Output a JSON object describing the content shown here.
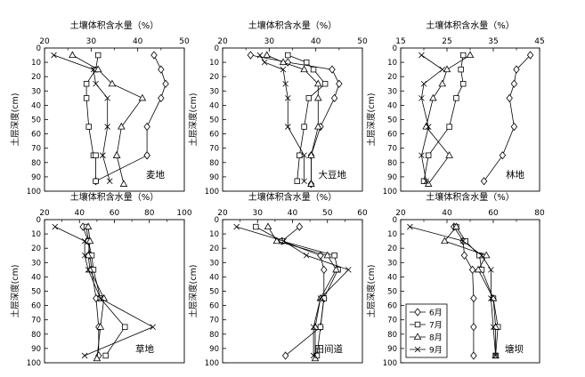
{
  "chart_data": [
    {
      "type": "line",
      "name": "麦地",
      "title": "土壤体积含水量（%）",
      "ylabel": "土层深度(cm)",
      "xlim": [
        20,
        50
      ],
      "ylim": [
        0,
        100
      ],
      "xticks": [
        20,
        30,
        40,
        50
      ],
      "yticks": [
        0,
        10,
        20,
        30,
        40,
        50,
        60,
        70,
        80,
        90,
        100
      ],
      "series": [
        {
          "name": "6月",
          "marker": "diamond",
          "x": [
            43.5,
            45.0,
            46.0,
            45.0,
            42.0,
            42.0,
            42.0,
            31.0
          ],
          "y": [
            5,
            15,
            25,
            35,
            55,
            75,
            75,
            93
          ]
        },
        {
          "name": "7月",
          "marker": "square",
          "x": [
            31.5,
            31.0,
            29.0,
            29.0,
            29.5,
            30.5,
            31.0,
            31.0
          ],
          "y": [
            5,
            15,
            25,
            35,
            55,
            75,
            75,
            93
          ]
        },
        {
          "name": "8月",
          "marker": "triangle",
          "x": [
            26.0,
            31.5,
            34.5,
            41.0,
            36.5,
            35.5,
            35.5,
            37.0
          ],
          "y": [
            5,
            15,
            25,
            35,
            55,
            75,
            75,
            95
          ]
        },
        {
          "name": "9月",
          "marker": "x",
          "x": [
            22.0,
            30.5,
            31.0,
            33.5,
            33.5,
            32.5,
            32.5,
            34.0
          ],
          "y": [
            5,
            15,
            25,
            35,
            55,
            75,
            75,
            93
          ]
        }
      ]
    },
    {
      "type": "line",
      "name": "大豆地",
      "title": "土壤体积含水量（%）",
      "ylabel": "土层深度(cm)",
      "xlim": [
        20,
        50
      ],
      "ylim": [
        0,
        100
      ],
      "xticks": [
        20,
        30,
        40,
        50
      ],
      "yticks": [
        0,
        10,
        20,
        30,
        40,
        50,
        60,
        70,
        80,
        90,
        100
      ],
      "series": [
        {
          "name": "6月",
          "marker": "diamond",
          "x": [
            26.0,
            34.0,
            43.5,
            45.0,
            44.0,
            41.0,
            39.0,
            39.0
          ],
          "y": [
            5,
            10,
            15,
            25,
            35,
            55,
            75,
            95
          ]
        },
        {
          "name": "7月",
          "marker": "square",
          "x": [
            34.0,
            38.0,
            39.5,
            42.0,
            38.5,
            37.5,
            36.5,
            36.0
          ],
          "y": [
            5,
            10,
            15,
            25,
            35,
            55,
            75,
            93
          ]
        },
        {
          "name": "8月",
          "marker": "triangle",
          "x": [
            29.5,
            33.0,
            37.5,
            40.5,
            40.5,
            40.5,
            39.0,
            39.0
          ],
          "y": [
            5,
            10,
            15,
            25,
            35,
            55,
            75,
            95
          ]
        },
        {
          "name": "9月",
          "marker": "x",
          "x": [
            28.0,
            29.0,
            33.0,
            33.5,
            34.0,
            34.0,
            37.5,
            37.5
          ],
          "y": [
            5,
            10,
            15,
            25,
            35,
            55,
            75,
            93
          ]
        }
      ]
    },
    {
      "type": "line",
      "name": "林地",
      "title": "土壤体积含水量（%）",
      "ylabel": "土层深度(cm)",
      "xlim": [
        15,
        45
      ],
      "ylim": [
        0,
        100
      ],
      "xticks": [
        15,
        25,
        35,
        45
      ],
      "yticks": [
        0,
        10,
        20,
        30,
        40,
        50,
        60,
        70,
        80,
        90,
        100
      ],
      "series": [
        {
          "name": "6月",
          "marker": "diamond",
          "x": [
            43.0,
            40.0,
            39.5,
            38.5,
            39.5,
            37.0,
            33.0
          ],
          "y": [
            5,
            15,
            25,
            35,
            55,
            75,
            93
          ]
        },
        {
          "name": "7月",
          "marker": "square",
          "x": [
            28.5,
            28.0,
            28.5,
            27.0,
            25.5,
            21.0,
            20.0
          ],
          "y": [
            5,
            15,
            25,
            35,
            55,
            75,
            93
          ]
        },
        {
          "name": "8月",
          "marker": "triangle",
          "x": [
            30.0,
            25.0,
            24.0,
            22.0,
            20.5,
            25.5,
            21.0
          ],
          "y": [
            5,
            15,
            25,
            35,
            55,
            75,
            95
          ]
        },
        {
          "name": "9月",
          "marker": "x",
          "x": [
            19.5,
            24.0,
            20.0,
            19.5,
            21.0,
            19.5,
            20.5
          ],
          "y": [
            5,
            15,
            25,
            35,
            55,
            75,
            93
          ]
        }
      ]
    },
    {
      "type": "line",
      "name": "草地",
      "title": "土壤体积含水量（%）",
      "ylabel": "土层深度(cm)",
      "xlim": [
        20,
        100
      ],
      "ylim": [
        0,
        100
      ],
      "xticks": [
        20,
        40,
        60,
        80,
        100
      ],
      "yticks": [
        0,
        10,
        20,
        30,
        40,
        50,
        60,
        70,
        80,
        90,
        100
      ],
      "series": [
        {
          "name": "6月",
          "marker": "diamond",
          "x": [
            42.0,
            45.0,
            46.0,
            47.0,
            49.5,
            51.0,
            51.0
          ],
          "y": [
            5,
            15,
            25,
            35,
            55,
            75,
            95
          ]
        },
        {
          "name": "7月",
          "marker": "square",
          "x": [
            44.0,
            45.0,
            47.0,
            48.0,
            52.0,
            66.0,
            55.0
          ],
          "y": [
            5,
            15,
            25,
            35,
            55,
            75,
            95
          ]
        },
        {
          "name": "8月",
          "marker": "triangle",
          "x": [
            45.0,
            46.0,
            45.0,
            46.0,
            54.0,
            52.0,
            50.0
          ],
          "y": [
            5,
            15,
            25,
            35,
            55,
            75,
            97
          ]
        },
        {
          "name": "9月",
          "marker": "x",
          "x": [
            26.0,
            43.0,
            43.0,
            45.0,
            52.0,
            82.0,
            43.0
          ],
          "y": [
            5,
            15,
            25,
            35,
            55,
            75,
            95
          ]
        }
      ]
    },
    {
      "type": "line",
      "name": "田间道",
      "title": "土壤体积含水量（%）",
      "ylabel": "土层深度(cm)",
      "xlim": [
        20,
        60
      ],
      "ylim": [
        0,
        100
      ],
      "xticks": [
        20,
        30,
        40,
        50,
        60
      ],
      "yticks": [
        0,
        10,
        20,
        30,
        40,
        50,
        60,
        70,
        80,
        90,
        100
      ],
      "series": [
        {
          "name": "6月",
          "marker": "diamond",
          "x": [
            42.0,
            37.0,
            48.0,
            49.0,
            49.0,
            48.0,
            38.0
          ],
          "y": [
            5,
            15,
            25,
            35,
            55,
            75,
            95
          ]
        },
        {
          "name": "7月",
          "marker": "square",
          "x": [
            29.5,
            37.0,
            52.0,
            53.0,
            49.0,
            48.0,
            47.0
          ],
          "y": [
            5,
            15,
            25,
            35,
            55,
            75,
            95
          ]
        },
        {
          "name": "8月",
          "marker": "triangle",
          "x": [
            33.0,
            35.5,
            50.0,
            52.5,
            48.0,
            46.5,
            46.5
          ],
          "y": [
            5,
            15,
            25,
            35,
            55,
            75,
            97
          ]
        },
        {
          "name": "9月",
          "marker": "x",
          "x": [
            24.0,
            37.5,
            44.0,
            56.0,
            48.0,
            46.0,
            46.0
          ],
          "y": [
            5,
            15,
            25,
            35,
            55,
            75,
            95
          ]
        }
      ]
    },
    {
      "type": "line",
      "name": "塘坝",
      "title": "土壤体积含水量（%）",
      "ylabel": "土层深度(cm)",
      "xlim": [
        20,
        80
      ],
      "ylim": [
        0,
        100
      ],
      "xticks": [
        20,
        40,
        60,
        80
      ],
      "yticks": [
        0,
        10,
        20,
        30,
        40,
        50,
        60,
        70,
        80,
        90,
        100
      ],
      "series": [
        {
          "name": "6月",
          "marker": "diamond",
          "x": [
            43.0,
            47.0,
            47.5,
            51.0,
            51.5,
            51.5,
            51.5
          ],
          "y": [
            5,
            15,
            25,
            35,
            55,
            75,
            95
          ]
        },
        {
          "name": "7月",
          "marker": "square",
          "x": [
            44.0,
            48.0,
            54.0,
            55.0,
            60.0,
            62.0,
            61.0
          ],
          "y": [
            5,
            15,
            25,
            35,
            55,
            75,
            95
          ]
        },
        {
          "name": "8月",
          "marker": "triangle",
          "x": [
            44.0,
            39.0,
            57.0,
            53.5,
            60.0,
            61.0,
            61.0
          ],
          "y": [
            5,
            15,
            25,
            35,
            55,
            75,
            95
          ]
        },
        {
          "name": "9月",
          "marker": "x",
          "x": [
            24.0,
            47.0,
            55.0,
            59.0,
            59.0,
            60.0,
            61.0
          ],
          "y": [
            5,
            15,
            25,
            35,
            55,
            75,
            95
          ]
        }
      ]
    }
  ],
  "legend": {
    "placement": "inside panel 6 (塘坝), lower-left",
    "entries": [
      "6月",
      "7月",
      "8月",
      "9月"
    ]
  },
  "axis_unit_labels": {
    "title": "土壤体积含水量（%）",
    "ylabel": "土层深度(cm)"
  }
}
